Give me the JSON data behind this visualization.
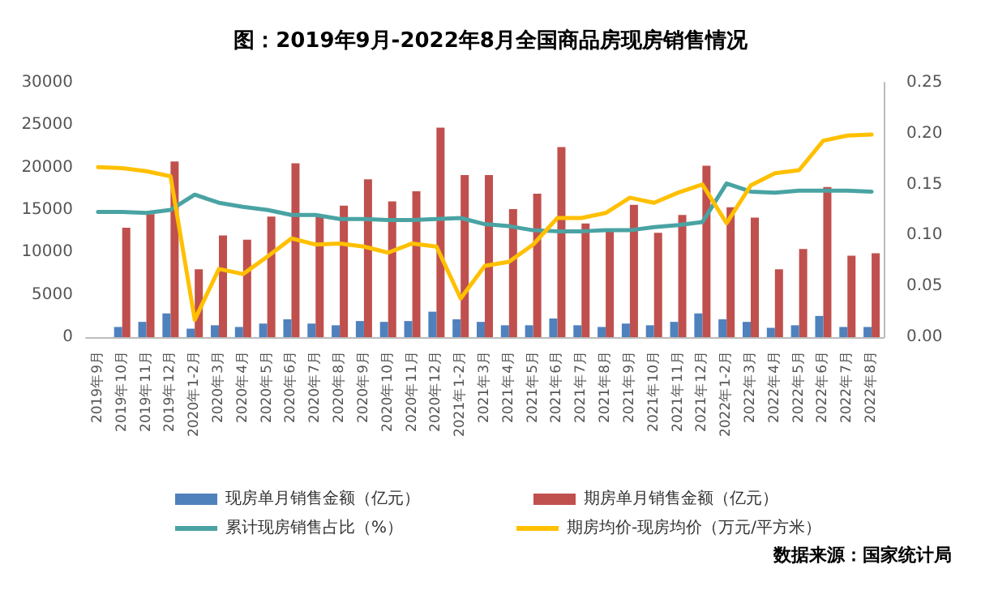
{
  "chart_data": {
    "type": "bar",
    "title": "图：2019年9月-2022年8月全国商品房现房销售情况",
    "categories": [
      "2019年9月",
      "2019年10月",
      "2019年11月",
      "2019年12月",
      "2020年1-2月",
      "2020年3月",
      "2020年4月",
      "2020年5月",
      "2020年6月",
      "2020年7月",
      "2020年8月",
      "2020年9月",
      "2020年10月",
      "2020年11月",
      "2020年12月",
      "2021年1-2月",
      "2021年3月",
      "2021年4月",
      "2021年5月",
      "2021年6月",
      "2021年7月",
      "2021年8月",
      "2021年9月",
      "2021年10月",
      "2021年11月",
      "2021年12月",
      "2022年1-2月",
      "2022年3月",
      "2022年4月",
      "2022年5月",
      "2022年6月",
      "2022年7月",
      "2022年8月"
    ],
    "series": [
      {
        "name": "现房单月销售金额（亿元）",
        "color": "#4f81bd",
        "values": [
          null,
          1200,
          1800,
          2800,
          1000,
          1400,
          1200,
          1600,
          2100,
          1600,
          1400,
          1900,
          1800,
          1900,
          3000,
          2100,
          1800,
          1400,
          1400,
          2200,
          1400,
          1200,
          1600,
          1400,
          1800,
          2800,
          2100,
          1800,
          1100,
          1400,
          2500,
          1200,
          1200
        ]
      },
      {
        "name": "期房单月销售金额（亿元）",
        "color": "#c0504d",
        "values": [
          null,
          12900,
          14500,
          20700,
          8000,
          12000,
          11500,
          14200,
          20500,
          14300,
          15500,
          18600,
          16000,
          17200,
          24700,
          19100,
          19100,
          15100,
          16900,
          22400,
          13400,
          12600,
          15600,
          12300,
          14400,
          20200,
          15300,
          14100,
          8000,
          10400,
          17700,
          9600,
          9900
        ]
      },
      {
        "name": "累计现房销售占比（%）",
        "type": "line",
        "axis": "y2",
        "color": "#4aa3a3",
        "values": [
          0.123,
          0.123,
          0.122,
          0.125,
          0.14,
          0.132,
          0.128,
          0.125,
          0.12,
          0.12,
          0.116,
          0.116,
          0.115,
          0.115,
          0.116,
          0.117,
          0.111,
          0.109,
          0.105,
          0.104,
          0.104,
          0.105,
          0.105,
          0.108,
          0.11,
          0.113,
          0.151,
          0.143,
          0.142,
          0.144,
          0.144,
          0.144,
          0.143
        ]
      },
      {
        "name": "期房均价-现房均价（万元/平方米）",
        "type": "line",
        "axis": "y2",
        "color": "#ffc000",
        "values": [
          0.167,
          0.166,
          0.163,
          0.158,
          0.017,
          0.067,
          0.062,
          0.079,
          0.097,
          0.091,
          0.092,
          0.089,
          0.083,
          0.092,
          0.089,
          0.038,
          0.07,
          0.074,
          0.091,
          0.117,
          0.117,
          0.122,
          0.137,
          0.132,
          0.142,
          0.15,
          0.112,
          0.149,
          0.161,
          0.164,
          0.193,
          0.198,
          0.199
        ]
      }
    ],
    "ylim": [
      0,
      30000
    ],
    "yticks": [
      0,
      5000,
      10000,
      15000,
      20000,
      25000,
      30000
    ],
    "y2lim": [
      0,
      0.25
    ],
    "y2ticks": [
      {
        "value": 0,
        "label": "0.00"
      },
      {
        "value": 0.05,
        "label": "0.05"
      },
      {
        "value": 0.1,
        "label": "0.10"
      },
      {
        "value": 0.15,
        "label": "0.15"
      },
      {
        "value": 0.2,
        "label": "0.20"
      },
      {
        "value": 0.25,
        "label": "0.25"
      }
    ],
    "legend": "bottom",
    "marker": "none",
    "grid": false,
    "annotations": [
      "数据来源：国家统计局"
    ]
  }
}
